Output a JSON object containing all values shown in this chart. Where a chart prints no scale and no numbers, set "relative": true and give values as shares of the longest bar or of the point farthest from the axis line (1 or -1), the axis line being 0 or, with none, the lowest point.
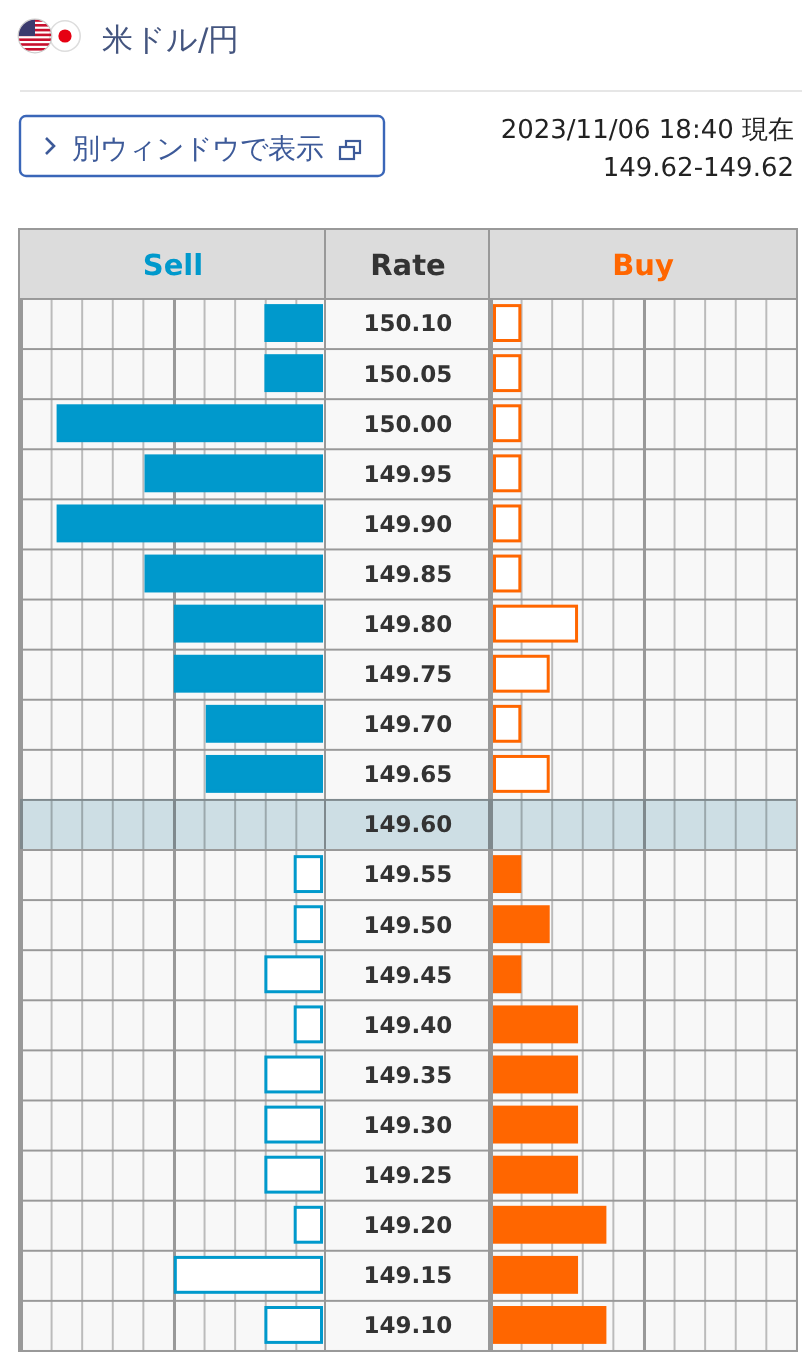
{
  "chart_data": [
    {
      "type": "bar",
      "orientation": "horizontal",
      "relative": true,
      "title": "米ドル/円",
      "ylabel": "Rate",
      "annotations": [
        "別ウィンドウで表示",
        "2023/11/06 18:40 現在",
        "149.62-149.62"
      ],
      "categories": [
        "150.10",
        "150.05",
        "150.00",
        "149.95",
        "149.90",
        "149.85",
        "149.80",
        "149.75",
        "149.70",
        "149.65",
        "149.60",
        "149.55",
        "149.50",
        "149.45",
        "149.40",
        "149.35",
        "149.30",
        "149.25",
        "149.20",
        "149.15",
        "149.10"
      ],
      "series": [
        {
          "name": "Sell",
          "color": "#0099cc",
          "colors": [
            "#0099cc",
            "#0099cc",
            "#0099cc",
            "#0099cc",
            "#0099cc",
            "#0099cc",
            "#0099cc",
            "#0099cc",
            "#0099cc",
            "#0099cc",
            null,
            "#ffffff",
            "#ffffff",
            "#ffffff",
            "#ffffff",
            "#ffffff",
            "#ffffff",
            "#ffffff",
            "#ffffff",
            "#ffffff",
            "#ffffff"
          ],
          "values": [
            -0.22,
            -0.22,
            -1,
            -0.67,
            -1,
            -0.67,
            -0.56,
            -0.56,
            -0.44,
            -0.44,
            null,
            -0.11,
            -0.11,
            -0.22,
            -0.11,
            -0.22,
            -0.22,
            -0.22,
            -0.11,
            -0.56,
            -0.22
          ]
        }
      ],
      "bands": [
        {
          "axis": "y",
          "from": "149.60",
          "to": "149.60",
          "color": "#d3e5eb"
        }
      ]
    },
    {
      "type": "bar",
      "orientation": "horizontal",
      "relative": true,
      "tick_labels": false,
      "categories": [
        "150.10",
        "150.05",
        "150.00",
        "149.95",
        "149.90",
        "149.85",
        "149.80",
        "149.75",
        "149.70",
        "149.65",
        "149.60",
        "149.55",
        "149.50",
        "149.45",
        "149.40",
        "149.35",
        "149.30",
        "149.25",
        "149.20",
        "149.15",
        "149.10"
      ],
      "series": [
        {
          "name": "Buy",
          "color": "#ff6600",
          "colors": [
            "#ffffff",
            "#ffffff",
            "#ffffff",
            "#ffffff",
            "#ffffff",
            "#ffffff",
            "#ffffff",
            "#ffffff",
            "#ffffff",
            "#ffffff",
            null,
            "#ff6600",
            "#ff6600",
            "#ff6600",
            "#ff6600",
            "#ff6600",
            "#ff6600",
            "#ff6600",
            "#ff6600",
            "#ff6600",
            "#ff6600"
          ],
          "values": [
            0.25,
            0.25,
            0.25,
            0.25,
            0.25,
            0.25,
            0.75,
            0.5,
            0.25,
            0.5,
            null,
            0.25,
            0.5,
            0.25,
            0.75,
            0.75,
            0.75,
            0.75,
            1,
            0.75,
            1
          ]
        }
      ],
      "bands": [
        {
          "axis": "y",
          "from": "149.60",
          "to": "149.60",
          "color": "#d3e5eb"
        }
      ]
    }
  ]
}
